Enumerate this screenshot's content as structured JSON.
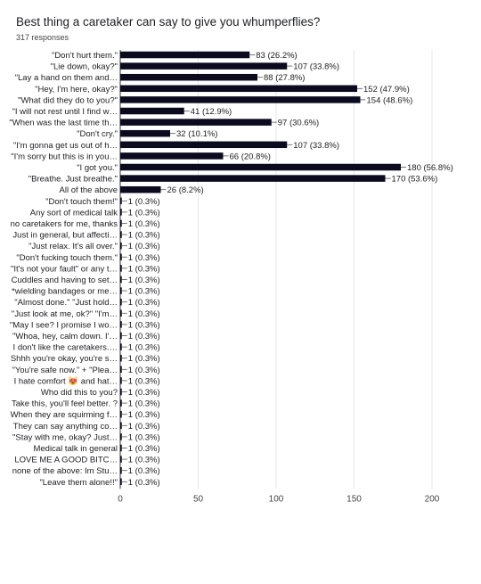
{
  "question": "Best thing a caretaker can say to give you whumperflies?",
  "response_count": "317 responses",
  "chart_data": {
    "type": "bar",
    "orientation": "horizontal",
    "title": "Best thing a caretaker can say to give you whumperflies?",
    "subtitle": "317 responses",
    "categories": [
      "\"Don't hurt them.\"",
      "\"Lie down, okay?\"",
      "\"Lay a hand on them and…",
      "\"Hey, I'm here, okay?\"",
      "\"What did they do to you?\"",
      "\"I will not rest until I find w…",
      "\"When was the last time th…",
      "\"Don't cry.\"",
      "\"I'm gonna get us out of h…",
      "\"I'm sorry but this is in you…",
      "\"I got you.\"",
      "\"Breathe. Just breathe.\"",
      "All of the above",
      "\"Don't touch them!\"",
      "Any sort of medical talk",
      "no caretakers for me, thanks",
      "Just in general, but affecti…",
      "\"Just relax. It's all over.\"",
      "\"Don't fucking touch them.\"",
      "\"It's not your fault\" or any t…",
      "Cuddles and having to set…",
      "*wielding bandages or me…",
      "\"Almost done.\" \"Just hold…",
      "\"Just look at me, ok?\" \"I'm…",
      "\"May I see? I promise I wo…",
      "\"Whoa, hey, calm down. I'…",
      "I don't like the caretakers.…",
      "Shhh you're okay, you're s…",
      "\"You're safe now.\" + \"Plea…",
      "I hate comfort 😻 and hat…",
      "Who did this to you?",
      "Take this, you'll feel better. ?",
      "When they are squirming f…",
      "They can say anything co…",
      "\"Stay with me, okay? Just…",
      "Medical talk in general",
      "LOVE ME A GOOD BITC…",
      "none of the above: Im Stu…",
      "\"Leave them alone!!\""
    ],
    "values": [
      83,
      107,
      88,
      152,
      154,
      41,
      97,
      32,
      107,
      66,
      180,
      170,
      26,
      1,
      1,
      1,
      1,
      1,
      1,
      1,
      1,
      1,
      1,
      1,
      1,
      1,
      1,
      1,
      1,
      1,
      1,
      1,
      1,
      1,
      1,
      1,
      1,
      1,
      1
    ],
    "data_labels": [
      "83 (26.2%)",
      "107 (33.8%)",
      "88 (27.8%)",
      "152 (47.9%)",
      "154 (48.6%)",
      "41 (12.9%)",
      "97 (30.6%)",
      "32 (10.1%)",
      "107 (33.8%)",
      "66 (20.8%)",
      "180 (56.8%)",
      "170 (53.6%)",
      "26 (8.2%)",
      "1 (0.3%)",
      "1 (0.3%)",
      "1 (0.3%)",
      "1 (0.3%)",
      "1 (0.3%)",
      "1 (0.3%)",
      "1 (0.3%)",
      "1 (0.3%)",
      "1 (0.3%)",
      "1 (0.3%)",
      "1 (0.3%)",
      "1 (0.3%)",
      "1 (0.3%)",
      "1 (0.3%)",
      "1 (0.3%)",
      "1 (0.3%)",
      "1 (0.3%)",
      "1 (0.3%)",
      "1 (0.3%)",
      "1 (0.3%)",
      "1 (0.3%)",
      "1 (0.3%)",
      "1 (0.3%)",
      "1 (0.3%)",
      "1 (0.3%)",
      "1 (0.3%)"
    ],
    "xlim": [
      0,
      200
    ],
    "xticks": [
      0,
      50,
      100,
      150,
      200
    ],
    "xlabel": "",
    "ylabel": "",
    "grid": true,
    "legend": "none",
    "bar_color": "#0b0a1f",
    "grid_color": "#e6e6e6",
    "text_color": "#202124"
  }
}
